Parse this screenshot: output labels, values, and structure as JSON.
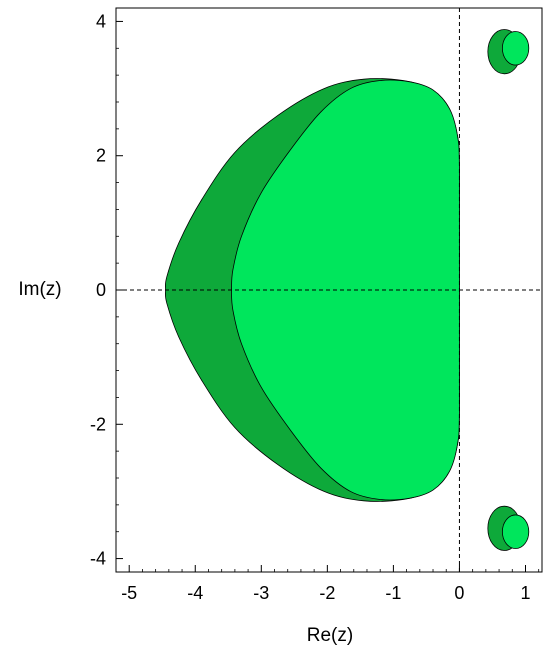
{
  "chart_data": {
    "type": "area",
    "title": "",
    "xlabel": "Re(z)",
    "ylabel": "Im(z)",
    "xlim": [
      -5.2,
      1.25
    ],
    "ylim": [
      -4.2,
      4.2
    ],
    "x_ticks": [
      -5,
      -4,
      -3,
      -2,
      -1,
      0,
      1
    ],
    "y_ticks": [
      -4,
      -2,
      0,
      2,
      4
    ],
    "x_tick_labels": [
      "-5",
      "-4",
      "-3",
      "-2",
      "-1",
      "0",
      "1"
    ],
    "y_tick_labels": [
      "-4",
      "-2",
      "0",
      "2",
      "4"
    ],
    "grid": false,
    "reference_lines": {
      "x": 0,
      "y": 0,
      "style": "dashed"
    },
    "colors": {
      "dark_region": "#0ea93a",
      "light_region": "#00e65c",
      "outline": "#000000"
    },
    "series": [
      {
        "color": "#0ea93a",
        "main_boundary": [
          [
            0,
            0
          ],
          [
            0,
            1.8
          ],
          [
            -0.03,
            2.3
          ],
          [
            -0.18,
            2.75
          ],
          [
            -0.45,
            3.0
          ],
          [
            -0.85,
            3.12
          ],
          [
            -1.45,
            3.14
          ],
          [
            -2.05,
            3.0
          ],
          [
            -2.75,
            2.6
          ],
          [
            -3.4,
            2.05
          ],
          [
            -3.9,
            1.35
          ],
          [
            -4.25,
            0.7
          ],
          [
            -4.43,
            0.2
          ],
          [
            -4.45,
            0
          ],
          [
            -4.43,
            -0.2
          ],
          [
            -4.25,
            -0.7
          ],
          [
            -3.9,
            -1.35
          ],
          [
            -3.4,
            -2.05
          ],
          [
            -2.75,
            -2.6
          ],
          [
            -2.05,
            -3.0
          ],
          [
            -1.45,
            -3.14
          ],
          [
            -0.85,
            -3.12
          ],
          [
            -0.45,
            -3.0
          ],
          [
            -0.18,
            -2.75
          ],
          [
            -0.03,
            -2.3
          ],
          [
            0,
            -1.8
          ]
        ],
        "islands": [
          {
            "cx": 0.68,
            "cy": 3.55,
            "rx": 0.25,
            "ry": 0.33
          },
          {
            "cx": 0.68,
            "cy": -3.55,
            "rx": 0.25,
            "ry": 0.33
          }
        ]
      },
      {
        "color": "#00e65c",
        "main_boundary": [
          [
            0,
            0
          ],
          [
            0,
            1.8
          ],
          [
            -0.03,
            2.3
          ],
          [
            -0.15,
            2.7
          ],
          [
            -0.4,
            2.98
          ],
          [
            -0.75,
            3.1
          ],
          [
            -1.2,
            3.12
          ],
          [
            -1.65,
            3.0
          ],
          [
            -2.1,
            2.65
          ],
          [
            -2.55,
            2.1
          ],
          [
            -3.0,
            1.45
          ],
          [
            -3.3,
            0.8
          ],
          [
            -3.43,
            0.3
          ],
          [
            -3.45,
            0
          ],
          [
            -3.43,
            -0.3
          ],
          [
            -3.3,
            -0.8
          ],
          [
            -3.0,
            -1.45
          ],
          [
            -2.55,
            -2.1
          ],
          [
            -2.1,
            -2.65
          ],
          [
            -1.65,
            -3.0
          ],
          [
            -1.2,
            -3.12
          ],
          [
            -0.75,
            -3.1
          ],
          [
            -0.4,
            -2.98
          ],
          [
            -0.15,
            -2.7
          ],
          [
            -0.03,
            -2.3
          ],
          [
            0,
            -1.8
          ]
        ],
        "islands": [
          {
            "cx": 0.85,
            "cy": 3.6,
            "rx": 0.2,
            "ry": 0.25
          },
          {
            "cx": 0.85,
            "cy": -3.6,
            "rx": 0.2,
            "ry": 0.25
          }
        ]
      }
    ]
  }
}
